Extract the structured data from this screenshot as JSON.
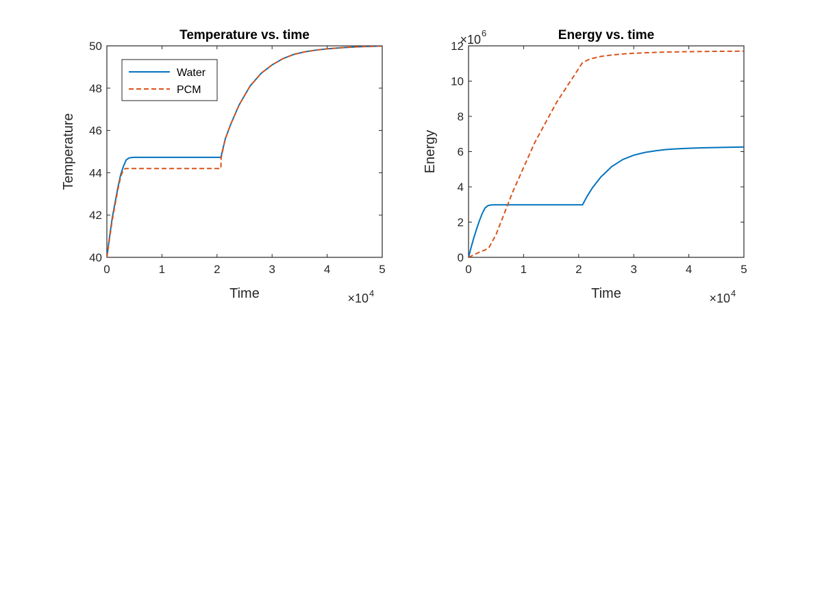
{
  "figure": {
    "colors": {
      "water": "#0072BD",
      "pcm": "#D95319",
      "axis": "#262626"
    }
  },
  "chart_data": [
    {
      "type": "line",
      "title": "Temperature vs. time",
      "xlabel": "Time",
      "ylabel": "Temperature",
      "xlim": [
        0,
        50000
      ],
      "ylim": [
        40,
        50
      ],
      "x_ticks": [
        0,
        10000,
        20000,
        30000,
        40000,
        50000
      ],
      "x_tick_labels": [
        "0",
        "1",
        "2",
        "3",
        "4",
        "5"
      ],
      "y_ticks": [
        40,
        42,
        44,
        46,
        48,
        50
      ],
      "y_tick_labels": [
        "40",
        "42",
        "44",
        "46",
        "48",
        "50"
      ],
      "x_exponent": {
        "base": "×10",
        "power": "4"
      },
      "grid": false,
      "legend": {
        "placement": "top-left",
        "entries": [
          "Water",
          "PCM"
        ]
      },
      "series": [
        {
          "name": "Water",
          "style": "solid",
          "color": "#0072BD",
          "x": [
            0,
            500,
            1000,
            1500,
            2000,
            2500,
            3000,
            3500,
            4000,
            4500,
            5000,
            6000,
            8000,
            12000,
            16000,
            20700,
            21500,
            22500,
            24000,
            26000,
            28000,
            30000,
            32000,
            34000,
            36000,
            38000,
            40000,
            43000,
            46000,
            50000
          ],
          "y": [
            40,
            41.0,
            41.9,
            42.6,
            43.3,
            43.9,
            44.3,
            44.6,
            44.7,
            44.72,
            44.73,
            44.73,
            44.73,
            44.73,
            44.73,
            44.73,
            45.6,
            46.3,
            47.2,
            48.1,
            48.7,
            49.1,
            49.4,
            49.6,
            49.72,
            49.8,
            49.86,
            49.92,
            49.96,
            49.99
          ]
        },
        {
          "name": "PCM",
          "style": "dashed",
          "color": "#D95319",
          "x": [
            0,
            500,
            1000,
            1500,
            2000,
            2500,
            3000,
            3400,
            3600,
            6000,
            10000,
            15000,
            20700,
            20750,
            21500,
            22500,
            24000,
            26000,
            28000,
            30000,
            32000,
            34000,
            36000,
            38000,
            40000,
            43000,
            46000,
            50000
          ],
          "y": [
            40,
            40.9,
            41.8,
            42.5,
            43.2,
            43.8,
            44.15,
            44.2,
            44.2,
            44.2,
            44.2,
            44.2,
            44.2,
            44.7,
            45.6,
            46.3,
            47.2,
            48.1,
            48.7,
            49.1,
            49.4,
            49.6,
            49.72,
            49.8,
            49.86,
            49.92,
            49.96,
            49.99
          ]
        }
      ]
    },
    {
      "type": "line",
      "title": "Energy vs. time",
      "xlabel": "Time",
      "ylabel": "Energy",
      "xlim": [
        0,
        50000
      ],
      "ylim": [
        0,
        12000000
      ],
      "x_ticks": [
        0,
        10000,
        20000,
        30000,
        40000,
        50000
      ],
      "x_tick_labels": [
        "0",
        "1",
        "2",
        "3",
        "4",
        "5"
      ],
      "y_ticks": [
        0,
        2000000,
        4000000,
        6000000,
        8000000,
        10000000,
        12000000
      ],
      "y_tick_labels": [
        "0",
        "2",
        "4",
        "6",
        "8",
        "10",
        "12"
      ],
      "x_exponent": {
        "base": "×10",
        "power": "4"
      },
      "y_exponent": {
        "base": "×10",
        "power": "6"
      },
      "grid": false,
      "series": [
        {
          "name": "Water",
          "style": "solid",
          "color": "#0072BD",
          "x": [
            0,
            500,
            1000,
            1500,
            2000,
            2500,
            3000,
            3500,
            4000,
            4500,
            5000,
            8000,
            12000,
            16000,
            20700,
            21500,
            22500,
            24000,
            26000,
            28000,
            30000,
            32000,
            34000,
            36000,
            38000,
            40000,
            43000,
            46000,
            50000
          ],
          "y": [
            0,
            600000,
            1150000,
            1650000,
            2100000,
            2500000,
            2800000,
            2930000,
            2970000,
            2980000,
            2980000,
            2980000,
            2980000,
            2980000,
            2980000,
            3450000,
            3950000,
            4550000,
            5150000,
            5550000,
            5800000,
            5950000,
            6050000,
            6120000,
            6160000,
            6190000,
            6220000,
            6240000,
            6260000
          ]
        },
        {
          "name": "PCM",
          "style": "dashed",
          "color": "#D95319",
          "x": [
            0,
            1000,
            2000,
            3000,
            3700,
            5000,
            8000,
            12000,
            16000,
            20700,
            22000,
            24000,
            26000,
            28000,
            30000,
            33000,
            36000,
            40000,
            45000,
            50000
          ],
          "y": [
            0,
            150000,
            300000,
            420000,
            550000,
            1300000,
            3700000,
            6500000,
            8800000,
            11050000,
            11250000,
            11400000,
            11480000,
            11540000,
            11580000,
            11620000,
            11650000,
            11670000,
            11690000,
            11700000
          ]
        }
      ]
    }
  ]
}
